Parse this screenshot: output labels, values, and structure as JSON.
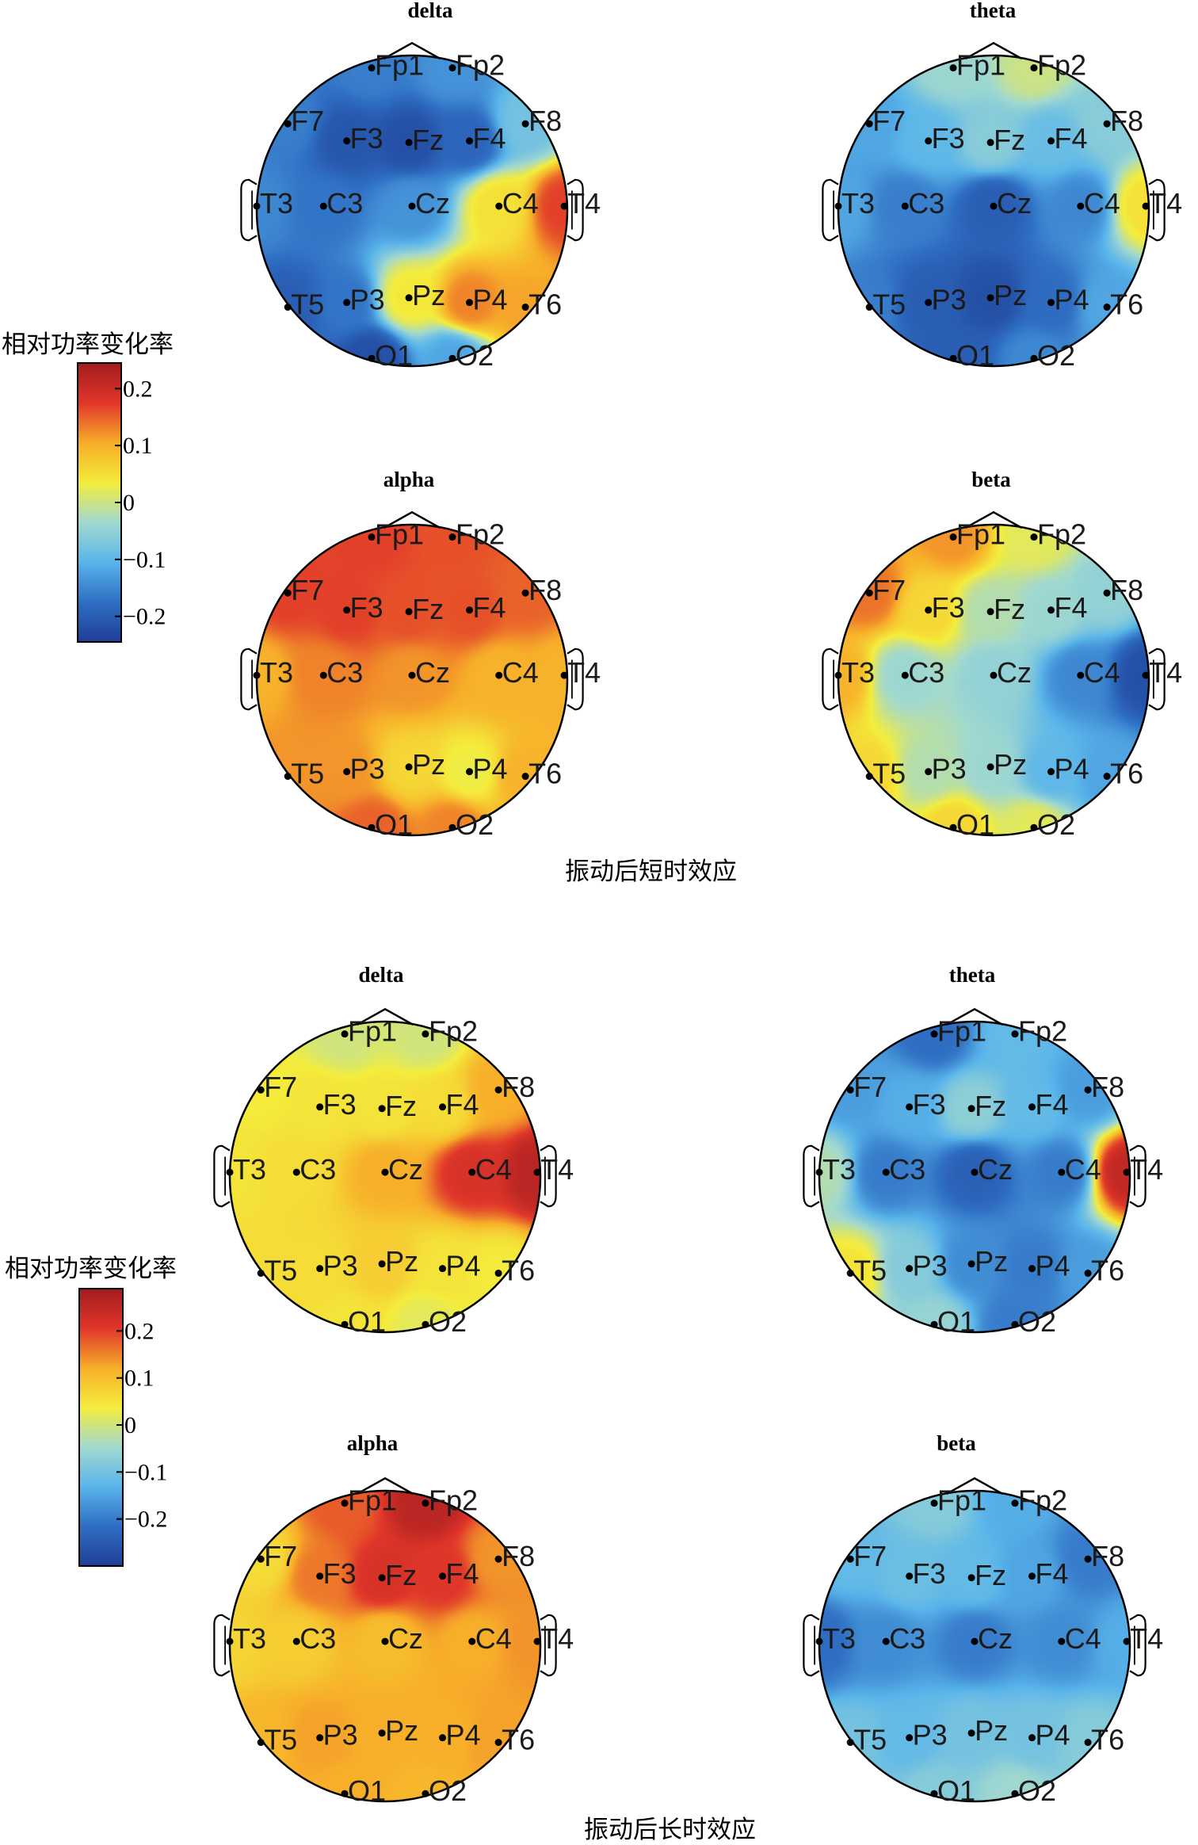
{
  "sections": [
    {
      "caption": "振动后短时效应",
      "colorbar": {
        "title": "相对功率变化率",
        "ticks": [
          "0.2",
          "0.1",
          "0",
          "−0.1",
          "−0.2"
        ],
        "tick_values": [
          0.2,
          0.1,
          0,
          -0.1,
          -0.2
        ],
        "range": [
          -0.245,
          0.245
        ]
      },
      "maps": [
        {
          "band": "delta",
          "values": {
            "Fp1": -0.16,
            "Fp2": -0.14,
            "F7": -0.16,
            "F3": -0.21,
            "Fz": -0.22,
            "F4": -0.19,
            "F8": -0.08,
            "T3": -0.15,
            "C3": -0.17,
            "Cz": -0.14,
            "C4": 0.05,
            "T4": 0.17,
            "T5": -0.2,
            "P3": -0.17,
            "Pz": 0.04,
            "P4": 0.13,
            "T6": 0.11,
            "O1": -0.22,
            "O2": -0.12
          }
        },
        {
          "band": "theta",
          "values": {
            "Fp1": -0.04,
            "Fp2": 0.0,
            "F7": -0.12,
            "F3": -0.1,
            "Fz": -0.06,
            "F4": -0.09,
            "F8": -0.06,
            "T3": -0.12,
            "C3": -0.16,
            "Cz": -0.2,
            "C4": -0.15,
            "T4": 0.05,
            "T5": -0.16,
            "P3": -0.2,
            "Pz": -0.22,
            "P4": -0.18,
            "T6": -0.12,
            "O1": -0.2,
            "O2": -0.15
          }
        },
        {
          "band": "alpha",
          "values": {
            "Fp1": 0.17,
            "Fp2": 0.16,
            "F7": 0.17,
            "F3": 0.17,
            "Fz": 0.16,
            "F4": 0.16,
            "F8": 0.15,
            "T3": 0.1,
            "C3": 0.13,
            "Cz": 0.12,
            "C4": 0.1,
            "T4": 0.1,
            "T5": 0.12,
            "P3": 0.12,
            "Pz": 0.06,
            "P4": 0.03,
            "T6": 0.1,
            "O1": 0.15,
            "O2": 0.13
          }
        },
        {
          "band": "beta",
          "values": {
            "Fp1": 0.12,
            "Fp2": 0.02,
            "F7": 0.14,
            "F3": 0.06,
            "Fz": -0.02,
            "F4": -0.04,
            "F8": -0.05,
            "T3": 0.1,
            "C3": -0.04,
            "Cz": -0.05,
            "C4": -0.15,
            "T4": -0.22,
            "T5": 0.06,
            "P3": -0.02,
            "Pz": -0.04,
            "P4": -0.1,
            "T6": -0.12,
            "O1": 0.06,
            "O2": 0.02
          }
        }
      ]
    },
    {
      "caption": "振动后长时效应",
      "colorbar": {
        "title": "相对功率变化率",
        "ticks": [
          "0.2",
          "0.1",
          "0",
          "−0.1",
          "−0.2"
        ],
        "tick_values": [
          0.2,
          0.1,
          0,
          -0.1,
          -0.2
        ],
        "range": [
          -0.3,
          0.29
        ]
      },
      "maps": [
        {
          "band": "delta",
          "values": {
            "Fp1": 0.0,
            "Fp2": 0.0,
            "F7": 0.04,
            "F3": 0.05,
            "Fz": 0.05,
            "F4": 0.06,
            "F8": 0.12,
            "T3": 0.05,
            "C3": 0.06,
            "Cz": 0.12,
            "C4": 0.22,
            "T4": 0.26,
            "T5": 0.06,
            "P3": 0.06,
            "Pz": 0.08,
            "P4": 0.05,
            "T6": 0.04,
            "O1": 0.05,
            "O2": 0.02
          }
        },
        {
          "band": "theta",
          "values": {
            "Fp1": -0.22,
            "Fp2": -0.12,
            "F7": -0.16,
            "F3": -0.14,
            "Fz": -0.07,
            "F4": -0.12,
            "F8": -0.16,
            "T3": -0.03,
            "C3": -0.2,
            "Cz": -0.24,
            "C4": -0.2,
            "T4": 0.25,
            "T5": 0.05,
            "P3": -0.08,
            "Pz": -0.18,
            "P4": -0.2,
            "T6": -0.16,
            "O1": -0.06,
            "O2": -0.2
          }
        },
        {
          "band": "alpha",
          "values": {
            "Fp1": 0.18,
            "Fp2": 0.26,
            "F7": 0.06,
            "F3": 0.16,
            "Fz": 0.22,
            "F4": 0.21,
            "F8": 0.14,
            "T3": 0.07,
            "C3": 0.08,
            "Cz": 0.1,
            "C4": 0.12,
            "T4": 0.14,
            "T5": 0.11,
            "P3": 0.13,
            "Pz": 0.12,
            "P4": 0.12,
            "T6": 0.13,
            "O1": 0.12,
            "O2": 0.11
          }
        },
        {
          "band": "beta",
          "values": {
            "Fp1": -0.08,
            "Fp2": -0.14,
            "F7": -0.12,
            "F3": -0.11,
            "Fz": -0.12,
            "F4": -0.15,
            "F8": -0.2,
            "T3": -0.22,
            "C3": -0.18,
            "Cz": -0.2,
            "C4": -0.18,
            "T4": -0.14,
            "T5": -0.1,
            "P3": -0.12,
            "Pz": -0.1,
            "P4": -0.1,
            "T6": -0.08,
            "O1": -0.08,
            "O2": -0.05
          }
        }
      ]
    }
  ],
  "colormap": [
    "#1f3f96",
    "#2f6fc4",
    "#5ab5ea",
    "#a2d9cf",
    "#f4ed3c",
    "#f7ae2a",
    "#e1372a",
    "#a41c1f"
  ],
  "electrodes": [
    "Fp1",
    "Fp2",
    "F7",
    "F3",
    "Fz",
    "F4",
    "F8",
    "T3",
    "C3",
    "Cz",
    "C4",
    "T4",
    "T5",
    "P3",
    "Pz",
    "P4",
    "T6",
    "O1",
    "O2"
  ]
}
